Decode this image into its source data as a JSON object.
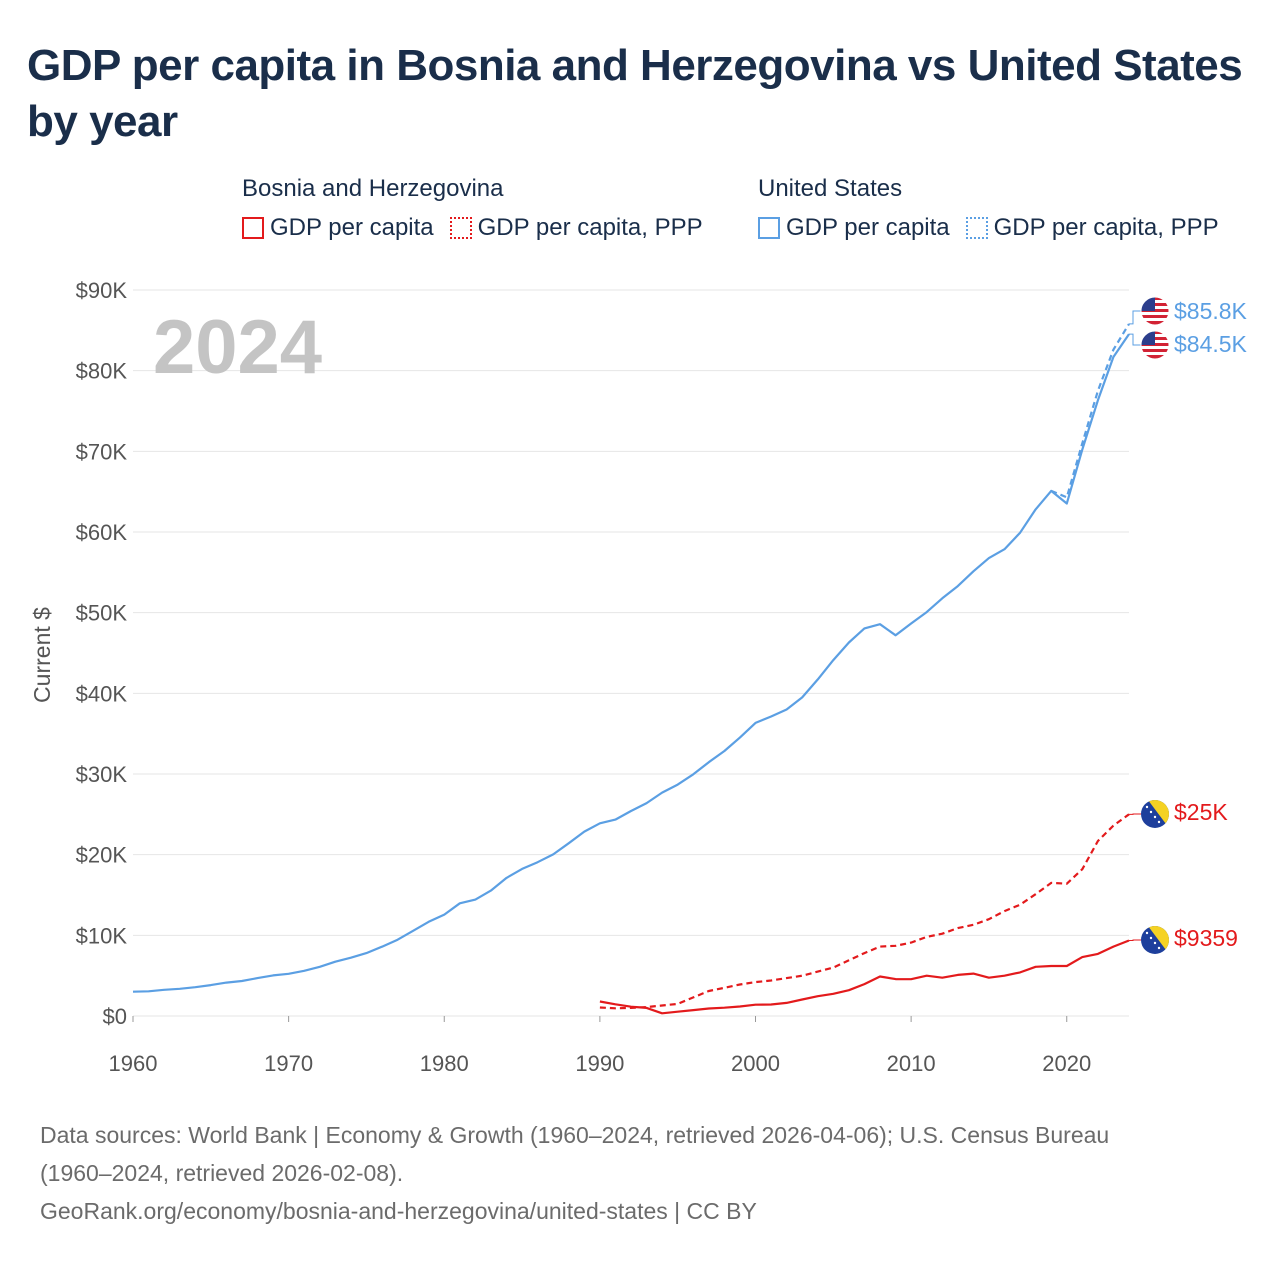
{
  "title": "GDP per capita in Bosnia and Herzegovina vs United States by year",
  "legend": {
    "bih": {
      "name": "Bosnia and Herzegovina",
      "items": [
        "GDP per capita",
        "GDP per capita, PPP"
      ]
    },
    "us": {
      "name": "United States",
      "items": [
        "GDP per capita",
        "GDP per capita, PPP"
      ]
    }
  },
  "year_label": "2024",
  "footer": {
    "line1": "Data sources: World Bank | Economy & Growth (1960–2024, retrieved 2026-04-06); U.S. Census Bureau",
    "line2": "(1960–2024, retrieved 2026-02-08).",
    "line3": "GeoRank.org/economy/bosnia-and-herzegovina/united-states | CC BY"
  },
  "colors": {
    "bih": "#e31a1c",
    "us": "#5b9fe3",
    "grid": "#e6e6e6",
    "axis_text": "#555555",
    "year": "#c4c4c4"
  },
  "chart_data": {
    "type": "line",
    "title": "GDP per capita in Bosnia and Herzegovina vs United States by year",
    "xlabel": "",
    "ylabel": "Current $",
    "xlim": [
      1960,
      2024
    ],
    "ylim": [
      0,
      90000
    ],
    "x_ticks": [
      1960,
      1970,
      1980,
      1990,
      2000,
      2010,
      2020
    ],
    "y_ticks": [
      0,
      10000,
      20000,
      30000,
      40000,
      50000,
      60000,
      70000,
      80000,
      90000
    ],
    "y_tick_labels": [
      "$0",
      "$10K",
      "$20K",
      "$30K",
      "$40K",
      "$50K",
      "$60K",
      "$70K",
      "$80K",
      "$90K"
    ],
    "series": [
      {
        "name": "United States GDP per capita",
        "country": "United States",
        "style": "solid",
        "end_label": "$84.5K",
        "x": [
          1960,
          1961,
          1962,
          1963,
          1964,
          1965,
          1966,
          1967,
          1968,
          1969,
          1970,
          1971,
          1972,
          1973,
          1974,
          1975,
          1976,
          1977,
          1978,
          1979,
          1980,
          1981,
          1982,
          1983,
          1984,
          1985,
          1986,
          1987,
          1988,
          1989,
          1990,
          1991,
          1992,
          1993,
          1994,
          1995,
          1996,
          1997,
          1998,
          1999,
          2000,
          2001,
          2002,
          2003,
          2004,
          2005,
          2006,
          2007,
          2008,
          2009,
          2010,
          2011,
          2012,
          2013,
          2014,
          2015,
          2016,
          2017,
          2018,
          2019,
          2020,
          2021,
          2022,
          2023,
          2024
        ],
        "values": [
          3007,
          3067,
          3244,
          3375,
          3574,
          3828,
          4146,
          4336,
          4696,
          5032,
          5234,
          5609,
          6094,
          6726,
          7226,
          7801,
          8592,
          9453,
          10565,
          11674,
          12575,
          13976,
          14434,
          15544,
          17121,
          18237,
          19071,
          20039,
          21417,
          22857,
          23889,
          24342,
          25419,
          26387,
          27695,
          28691,
          29968,
          31459,
          32854,
          34516,
          36330,
          37134,
          37998,
          39490,
          41725,
          44123,
          46302,
          48050,
          48570,
          47195,
          48651,
          50066,
          51784,
          53291,
          55124,
          56763,
          57867,
          59915,
          62805,
          65095,
          63528,
          70219,
          76330,
          81695,
          84534
        ]
      },
      {
        "name": "United States GDP per capita, PPP",
        "country": "United States",
        "style": "dashed",
        "end_label": "$85.8K",
        "x": [
          2019,
          2020,
          2021,
          2022,
          2023,
          2024
        ],
        "values": [
          65100,
          64300,
          71000,
          77500,
          82600,
          85800
        ]
      },
      {
        "name": "Bosnia and Herzegovina GDP per capita",
        "country": "Bosnia and Herzegovina",
        "style": "solid",
        "end_label": "$9359",
        "x": [
          1990,
          1991,
          1992,
          1993,
          1994,
          1995,
          1996,
          1997,
          1998,
          1999,
          2000,
          2001,
          2002,
          2003,
          2004,
          2005,
          2006,
          2007,
          2008,
          2009,
          2010,
          2011,
          2012,
          2013,
          2014,
          2015,
          2016,
          2017,
          2018,
          2019,
          2020,
          2021,
          2022,
          2023,
          2024
        ],
        "values": [
          1800,
          1450,
          1150,
          1000,
          330,
          530,
          730,
          930,
          1030,
          1180,
          1400,
          1430,
          1630,
          2050,
          2450,
          2750,
          3200,
          3950,
          4900,
          4580,
          4560,
          5000,
          4750,
          5100,
          5250,
          4750,
          5000,
          5400,
          6100,
          6200,
          6200,
          7300,
          7700,
          8600,
          9359
        ]
      },
      {
        "name": "Bosnia and Herzegovina GDP per capita, PPP",
        "country": "Bosnia and Herzegovina",
        "style": "dashed",
        "end_label": "$25K",
        "x": [
          1990,
          1991,
          1992,
          1993,
          1994,
          1995,
          1996,
          1997,
          1998,
          1999,
          2000,
          2001,
          2002,
          2003,
          2004,
          2005,
          2006,
          2007,
          2008,
          2009,
          2010,
          2011,
          2012,
          2013,
          2014,
          2015,
          2016,
          2017,
          2018,
          2019,
          2020,
          2021,
          2022,
          2023,
          2024
        ],
        "values": [
          1050,
          950,
          1000,
          1100,
          1300,
          1500,
          2300,
          3100,
          3500,
          3900,
          4200,
          4400,
          4700,
          5000,
          5500,
          6000,
          6900,
          7800,
          8600,
          8700,
          9100,
          9800,
          10200,
          10900,
          11300,
          12000,
          13000,
          13800,
          15100,
          16500,
          16400,
          18200,
          21700,
          23600,
          25000
        ]
      }
    ]
  }
}
